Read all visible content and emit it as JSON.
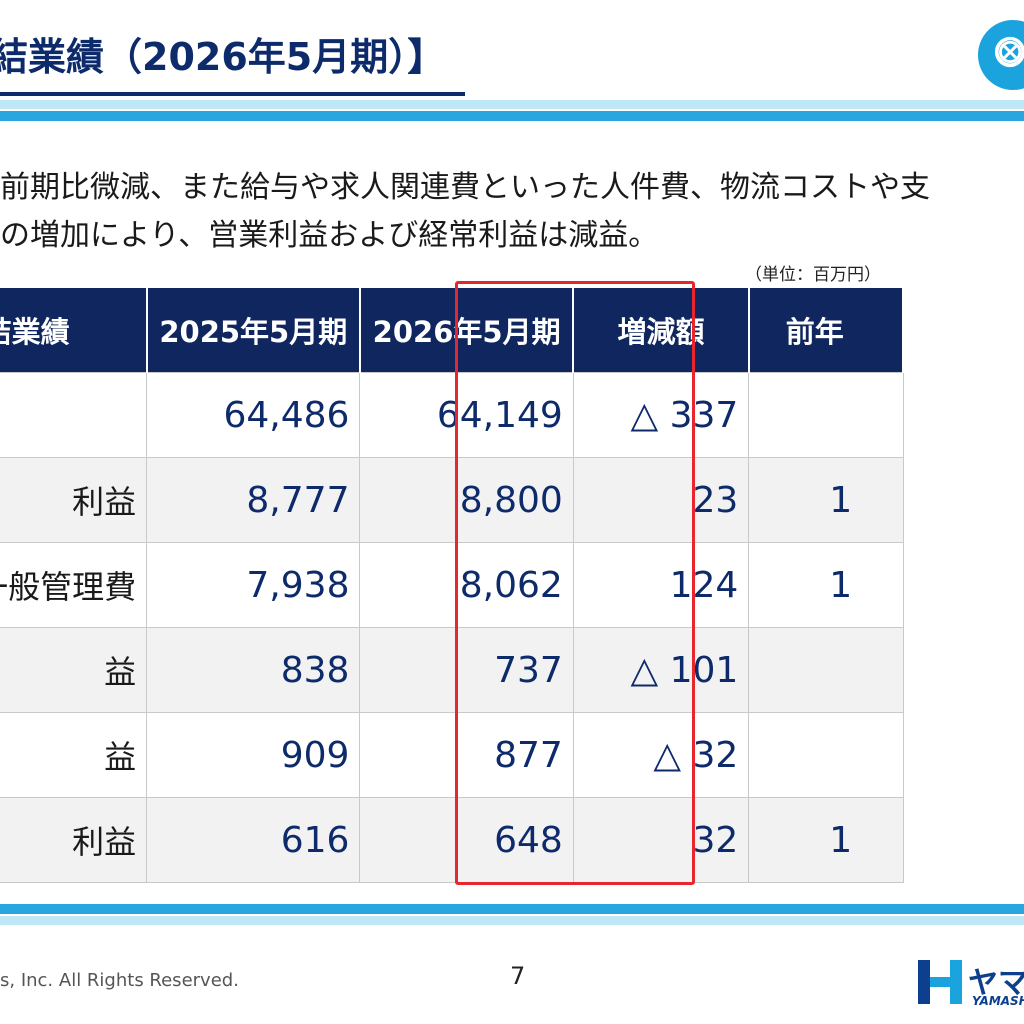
{
  "slide": {
    "title": "結業績（2026年5月期）】",
    "body_lines": [
      "前期比微減、また給与や求人関連費といった人件費、物流コストや支",
      "の増加により、営業利益および経常利益は減益。"
    ],
    "unit": "（単位：百万円）",
    "copyright": "s, Inc. All Rights Reserved.",
    "page_number": "7",
    "brand": {
      "name": "ヤマ",
      "sub": "YAMASH"
    }
  },
  "table": {
    "headers": [
      "連結業績",
      "2025年5月期",
      "2026年5月期",
      "増減額",
      "前年"
    ],
    "rows": [
      {
        "label": "",
        "v2025": "64,486",
        "v2026": "64,149",
        "change": "△ 337",
        "yoy": ""
      },
      {
        "label": "利益",
        "v2025": "8,777",
        "v2026": "8,800",
        "change": "23",
        "yoy": "1"
      },
      {
        "label": "び一般管理費",
        "v2025": "7,938",
        "v2026": "8,062",
        "change": "124",
        "yoy": "1"
      },
      {
        "label": "益",
        "v2025": "838",
        "v2026": "737",
        "change": "△ 101",
        "yoy": ""
      },
      {
        "label": "益",
        "v2025": "909",
        "v2026": "877",
        "change": "△ 32",
        "yoy": ""
      },
      {
        "label": "利益",
        "v2025": "616",
        "v2026": "648",
        "change": "32",
        "yoy": "1"
      }
    ]
  },
  "colors": {
    "header_bg": "#10265f",
    "title": "#0d2a6b",
    "band_dark": "#29a6de",
    "band_light": "#bfe8f7",
    "highlight": "#e8262d"
  },
  "icons": {
    "top_logo": "running-figure-icon",
    "brand_mark": "yamashin-logo-icon"
  }
}
